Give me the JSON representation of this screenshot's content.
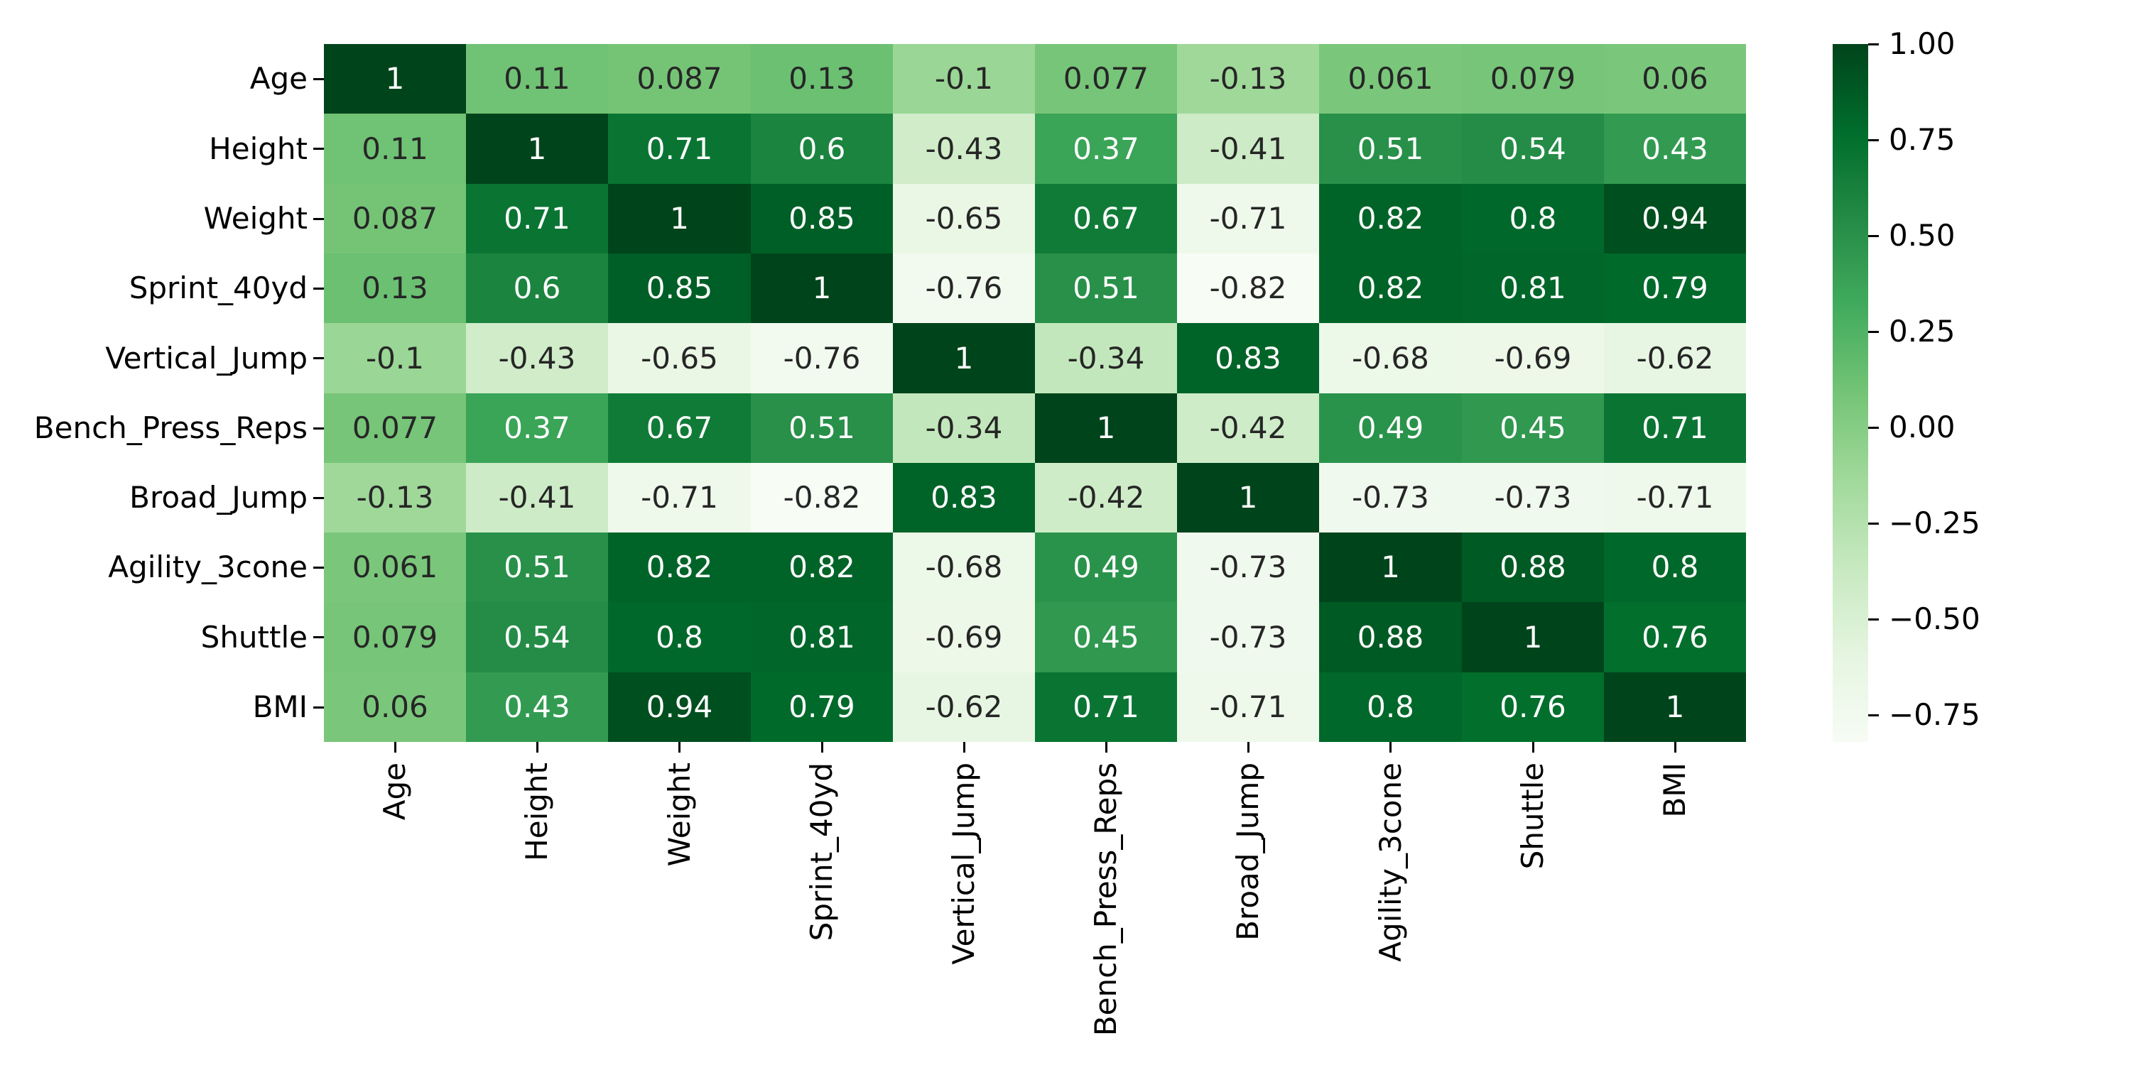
{
  "chart_data": {
    "type": "heatmap",
    "title": "",
    "categories": [
      "Age",
      "Height",
      "Weight",
      "Sprint_40yd",
      "Vertical_Jump",
      "Bench_Press_Reps",
      "Broad_Jump",
      "Agility_3cone",
      "Shuttle",
      "BMI"
    ],
    "matrix": [
      [
        1,
        0.11,
        0.087,
        0.13,
        -0.1,
        0.077,
        -0.13,
        0.061,
        0.079,
        0.06
      ],
      [
        0.11,
        1,
        0.71,
        0.6,
        -0.43,
        0.37,
        -0.41,
        0.51,
        0.54,
        0.43
      ],
      [
        0.087,
        0.71,
        1,
        0.85,
        -0.65,
        0.67,
        -0.71,
        0.82,
        0.8,
        0.94
      ],
      [
        0.13,
        0.6,
        0.85,
        1,
        -0.76,
        0.51,
        -0.82,
        0.82,
        0.81,
        0.79
      ],
      [
        -0.1,
        -0.43,
        -0.65,
        -0.76,
        1,
        -0.34,
        0.83,
        -0.68,
        -0.69,
        -0.62
      ],
      [
        0.077,
        0.37,
        0.67,
        0.51,
        -0.34,
        1,
        -0.42,
        0.49,
        0.45,
        0.71
      ],
      [
        -0.13,
        -0.41,
        -0.71,
        -0.82,
        0.83,
        -0.42,
        1,
        -0.73,
        -0.73,
        -0.71
      ],
      [
        0.061,
        0.51,
        0.82,
        0.82,
        -0.68,
        0.49,
        -0.73,
        1,
        0.88,
        0.8
      ],
      [
        0.079,
        0.54,
        0.8,
        0.81,
        -0.69,
        0.45,
        -0.73,
        0.88,
        1,
        0.76
      ],
      [
        0.06,
        0.43,
        0.94,
        0.79,
        -0.62,
        0.71,
        -0.71,
        0.8,
        0.76,
        1
      ]
    ],
    "vmin": -0.82,
    "vmax": 1,
    "colormap": {
      "name": "Greens",
      "anchors": [
        "#f7fcf5",
        "#e5f5e0",
        "#c7e9c0",
        "#a1d99b",
        "#74c476",
        "#41ab5d",
        "#238b45",
        "#006d2c",
        "#00441b"
      ]
    },
    "colorbar": {
      "tick_values": [
        1,
        0.75,
        0.5,
        0.25,
        0,
        -0.25,
        -0.5,
        -0.75
      ],
      "tick_labels": [
        "1.00",
        "0.75",
        "0.50",
        "0.25",
        "0.00",
        "−0.25",
        "−0.50",
        "−0.75"
      ],
      "position": "right"
    },
    "annotation_colors": {
      "dark": "#262626",
      "light": "#ffffff"
    },
    "background": "#ffffff",
    "grid": false,
    "xlabel": "",
    "ylabel": ""
  }
}
